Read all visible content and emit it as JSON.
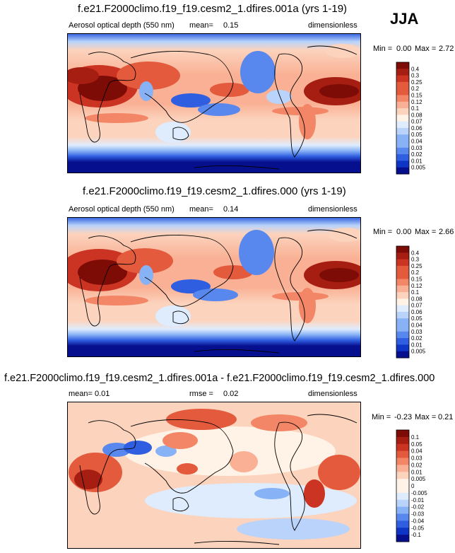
{
  "season": "JJA",
  "colors": {
    "scale": [
      "#06108f",
      "#0f35c6",
      "#2f5ee0",
      "#5888ee",
      "#88b2f6",
      "#b9d3fb",
      "#deecfd",
      "#fff2e6",
      "#fcd3bd",
      "#f9b094",
      "#f38666",
      "#e35a3d",
      "#cb3322",
      "#a61d12",
      "#7d0b06"
    ]
  },
  "chart_data": [
    {
      "type": "heatmap",
      "title": "f.e21.F2000climo.f19_f19.cesm2_1.dfires.001a (yrs 1-19)",
      "variable": "Aerosol optical depth (550 nm)",
      "stat_label": "mean=",
      "stat_value": "0.15",
      "units": "dimensionless",
      "min_label": "Min =",
      "min_value": "0.00",
      "max_label": "Max =",
      "max_value": "2.72",
      "colorbar_levels": [
        "0.4",
        "0.3",
        "0.25",
        "0.2",
        "0.15",
        "0.12",
        "0.1",
        "0.08",
        "0.07",
        "0.06",
        "0.05",
        "0.04",
        "0.03",
        "0.02",
        "0.01",
        "0.005"
      ]
    },
    {
      "type": "heatmap",
      "title": "f.e21.F2000climo.f19_f19.cesm2_1.dfires.000 (yrs 1-19)",
      "variable": "Aerosol optical depth (550 nm)",
      "stat_label": "mean=",
      "stat_value": "0.14",
      "units": "dimensionless",
      "min_label": "Min =",
      "min_value": "0.00",
      "max_label": "Max =",
      "max_value": "2.66",
      "colorbar_levels": [
        "0.4",
        "0.3",
        "0.25",
        "0.2",
        "0.15",
        "0.12",
        "0.1",
        "0.08",
        "0.07",
        "0.06",
        "0.05",
        "0.04",
        "0.03",
        "0.02",
        "0.01",
        "0.005"
      ]
    },
    {
      "type": "heatmap",
      "title": "f.e21.F2000climo.f19_f19.cesm2_1.dfires.001a - f.e21.F2000climo.f19_f19.cesm2_1.dfires.000",
      "stat_label": "mean=",
      "stat_value": "0.01",
      "rmse_label": "rmse =",
      "rmse_value": "0.02",
      "units": "dimensionless",
      "min_label": "Min =",
      "min_value": "-0.23",
      "max_label": "Max =",
      "max_value": "0.21",
      "colorbar_levels": [
        "0.1",
        "0.05",
        "0.04",
        "0.03",
        "0.02",
        "0.01",
        "0.005",
        "0",
        "-0.005",
        "-0.01",
        "-0.02",
        "-0.03",
        "-0.04",
        "-0.05",
        "-0.1"
      ]
    }
  ]
}
